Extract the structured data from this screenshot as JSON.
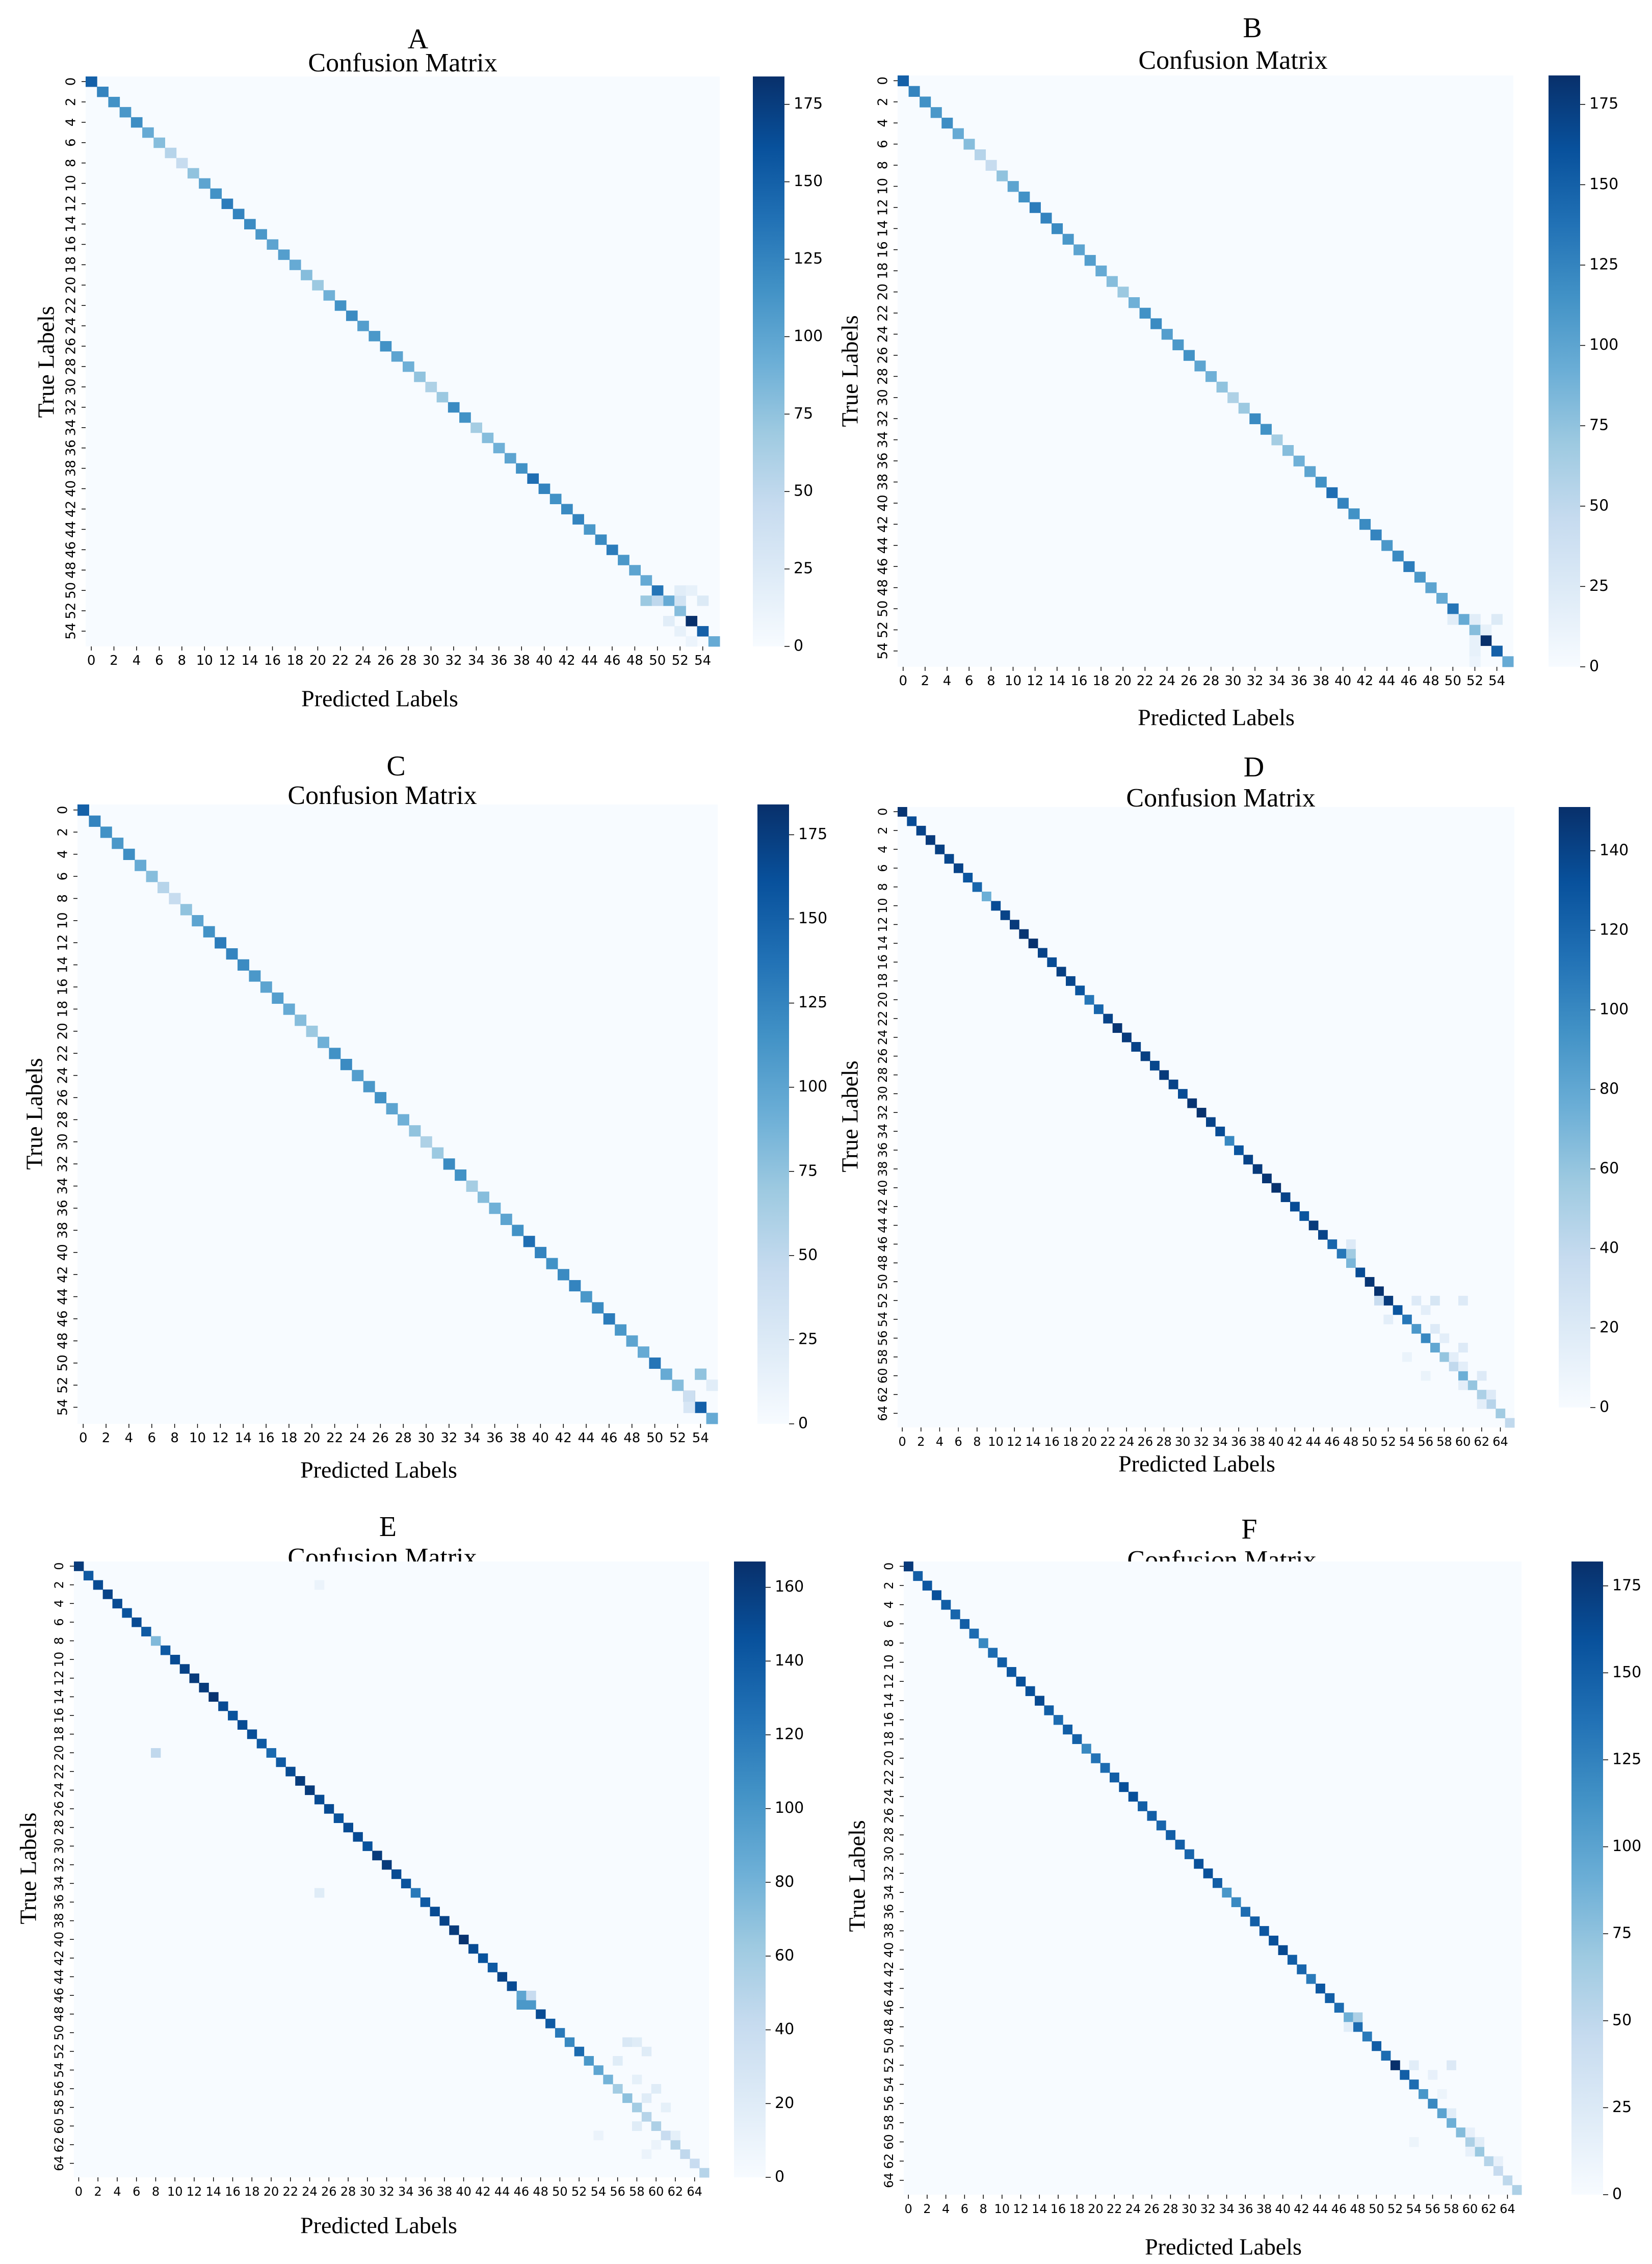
{
  "figure": {
    "colormap": [
      "#f7fbff",
      "#deebf7",
      "#c6dbef",
      "#9ecae1",
      "#6baed6",
      "#4292c6",
      "#2171b5",
      "#08519c",
      "#08306b"
    ]
  },
  "chart_data": [
    {
      "type": "heatmap",
      "panel_label": "A",
      "title": "Confusion Matrix",
      "xlabel": "Predicted Labels",
      "ylabel": "True Labels",
      "n_classes": 56,
      "tick_labels": [
        "0",
        "2",
        "4",
        "6",
        "8",
        "10",
        "12",
        "14",
        "16",
        "18",
        "20",
        "22",
        "24",
        "26",
        "28",
        "30",
        "32",
        "34",
        "36",
        "38",
        "40",
        "42",
        "44",
        "46",
        "48",
        "50",
        "52",
        "54"
      ],
      "colorbar": {
        "min": 0,
        "max": 184,
        "ticks": [
          0,
          25,
          50,
          75,
          100,
          125,
          150,
          175
        ]
      },
      "diagonal": [
        150,
        125,
        115,
        110,
        118,
        95,
        80,
        55,
        45,
        75,
        100,
        115,
        130,
        125,
        120,
        110,
        100,
        105,
        95,
        80,
        70,
        90,
        115,
        120,
        105,
        110,
        115,
        100,
        90,
        75,
        60,
        70,
        120,
        115,
        65,
        80,
        90,
        100,
        115,
        140,
        125,
        115,
        120,
        125,
        110,
        120,
        130,
        110,
        100,
        95,
        135,
        95,
        80,
        184,
        150,
        95
      ],
      "off_diagonal": [
        [
          51,
          49,
          70
        ],
        [
          51,
          50,
          50
        ],
        [
          51,
          52,
          35
        ],
        [
          50,
          52,
          20
        ],
        [
          51,
          54,
          25
        ],
        [
          53,
          51,
          20
        ],
        [
          54,
          52,
          15
        ],
        [
          50,
          53,
          15
        ],
        [
          55,
          53,
          10
        ]
      ]
    },
    {
      "type": "heatmap",
      "panel_label": "B",
      "title": "Confusion Matrix",
      "xlabel": "Predicted Labels",
      "ylabel": "True Labels",
      "n_classes": 56,
      "tick_labels": [
        "0",
        "2",
        "4",
        "6",
        "8",
        "10",
        "12",
        "14",
        "16",
        "18",
        "20",
        "22",
        "24",
        "26",
        "28",
        "30",
        "32",
        "34",
        "36",
        "38",
        "40",
        "42",
        "44",
        "46",
        "48",
        "50",
        "52",
        "54"
      ],
      "colorbar": {
        "min": 0,
        "max": 184,
        "ticks": [
          0,
          25,
          50,
          75,
          100,
          125,
          150,
          175
        ]
      },
      "diagonal": [
        150,
        125,
        115,
        110,
        118,
        95,
        80,
        55,
        45,
        75,
        100,
        115,
        130,
        125,
        120,
        110,
        100,
        105,
        95,
        80,
        70,
        90,
        115,
        120,
        105,
        110,
        115,
        100,
        90,
        75,
        60,
        70,
        120,
        115,
        65,
        80,
        90,
        100,
        115,
        140,
        125,
        115,
        120,
        125,
        110,
        120,
        130,
        110,
        100,
        95,
        135,
        95,
        80,
        184,
        150,
        95
      ],
      "off_diagonal": [
        [
          51,
          50,
          20
        ],
        [
          51,
          52,
          20
        ],
        [
          52,
          53,
          15
        ],
        [
          51,
          54,
          25
        ],
        [
          53,
          52,
          15
        ],
        [
          54,
          52,
          15
        ],
        [
          55,
          52,
          10
        ]
      ]
    },
    {
      "type": "heatmap",
      "panel_label": "C",
      "title": "Confusion Matrix",
      "xlabel": "Predicted Labels",
      "ylabel": "True Labels",
      "n_classes": 56,
      "tick_labels": [
        "0",
        "2",
        "4",
        "6",
        "8",
        "10",
        "12",
        "14",
        "16",
        "18",
        "20",
        "22",
        "24",
        "26",
        "28",
        "30",
        "32",
        "34",
        "36",
        "38",
        "40",
        "42",
        "44",
        "46",
        "48",
        "50",
        "52",
        "54"
      ],
      "colorbar": {
        "min": 0,
        "max": 184,
        "ticks": [
          0,
          25,
          50,
          75,
          100,
          125,
          150,
          175
        ],
        "tick_labels": [
          "0",
          "25",
          "50",
          "75",
          "100",
          "125",
          "150",
          "175"
        ]
      },
      "diagonal": [
        150,
        125,
        115,
        110,
        118,
        95,
        80,
        55,
        45,
        75,
        100,
        115,
        130,
        125,
        120,
        110,
        100,
        105,
        95,
        80,
        70,
        90,
        115,
        120,
        105,
        110,
        115,
        100,
        90,
        75,
        60,
        70,
        120,
        115,
        65,
        80,
        90,
        100,
        115,
        140,
        125,
        115,
        120,
        125,
        110,
        120,
        130,
        110,
        100,
        95,
        135,
        95,
        80,
        184,
        150,
        95
      ],
      "off_diagonal": [
        [
          51,
          54,
          75
        ],
        [
          52,
          55,
          20
        ],
        [
          53,
          53,
          40
        ],
        [
          54,
          53,
          30
        ]
      ]
    },
    {
      "type": "heatmap",
      "panel_label": "D",
      "title": "Confusion Matrix",
      "xlabel": "Predicted Labels",
      "ylabel": "True Labels",
      "n_classes": 66,
      "tick_labels": [
        "0",
        "2",
        "4",
        "6",
        "8",
        "10",
        "12",
        "14",
        "16",
        "18",
        "20",
        "22",
        "24",
        "26",
        "28",
        "30",
        "32",
        "34",
        "36",
        "38",
        "40",
        "42",
        "44",
        "46",
        "48",
        "50",
        "52",
        "54",
        "56",
        "58",
        "60",
        "62",
        "64"
      ],
      "colorbar": {
        "min": 0,
        "max": 151,
        "ticks": [
          0,
          20,
          40,
          60,
          80,
          100,
          120,
          140
        ]
      },
      "diagonal": [
        148,
        135,
        140,
        145,
        142,
        138,
        140,
        130,
        120,
        75,
        135,
        140,
        145,
        148,
        150,
        140,
        135,
        142,
        138,
        130,
        110,
        120,
        140,
        148,
        145,
        140,
        142,
        138,
        145,
        140,
        135,
        148,
        150,
        140,
        135,
        100,
        130,
        140,
        145,
        148,
        150,
        140,
        135,
        130,
        145,
        140,
        120,
        110,
        70,
        135,
        148,
        150,
        145,
        130,
        110,
        90,
        100,
        80,
        60,
        40,
        75,
        60,
        50,
        45,
        55,
        40
      ],
      "off_diagonal": [
        [
          47,
          48,
          55
        ],
        [
          46,
          48,
          20
        ],
        [
          52,
          51,
          35
        ],
        [
          52,
          55,
          20
        ],
        [
          52,
          57,
          25
        ],
        [
          52,
          60,
          20
        ],
        [
          53,
          56,
          15
        ],
        [
          54,
          52,
          15
        ],
        [
          55,
          57,
          20
        ],
        [
          56,
          58,
          15
        ],
        [
          57,
          60,
          20
        ],
        [
          58,
          59,
          15
        ],
        [
          59,
          60,
          15
        ],
        [
          60,
          62,
          20
        ],
        [
          61,
          60,
          15
        ],
        [
          62,
          63,
          20
        ],
        [
          63,
          62,
          15
        ],
        [
          60,
          56,
          10
        ],
        [
          58,
          54,
          10
        ]
      ]
    },
    {
      "type": "heatmap",
      "panel_label": "E",
      "title": "Confusion Matrix",
      "xlabel": "Predicted Labels",
      "ylabel": "True Labels",
      "n_classes": 66,
      "tick_labels": [
        "0",
        "2",
        "4",
        "6",
        "8",
        "10",
        "12",
        "14",
        "16",
        "18",
        "20",
        "22",
        "24",
        "26",
        "28",
        "30",
        "32",
        "34",
        "36",
        "38",
        "40",
        "42",
        "44",
        "46",
        "48",
        "50",
        "52",
        "54",
        "56",
        "58",
        "60",
        "62",
        "64"
      ],
      "colorbar": {
        "min": 0,
        "max": 167,
        "ticks": [
          0,
          20,
          40,
          60,
          80,
          100,
          120,
          140,
          160
        ]
      },
      "diagonal": [
        160,
        140,
        150,
        155,
        150,
        145,
        150,
        140,
        75,
        140,
        150,
        155,
        160,
        160,
        165,
        150,
        145,
        150,
        148,
        140,
        130,
        140,
        150,
        160,
        160,
        150,
        150,
        145,
        150,
        150,
        145,
        160,
        160,
        150,
        145,
        120,
        140,
        150,
        155,
        160,
        165,
        150,
        145,
        140,
        155,
        150,
        90,
        100,
        150,
        140,
        120,
        110,
        130,
        100,
        90,
        80,
        60,
        70,
        60,
        50,
        55,
        40,
        50,
        45,
        40,
        50
      ],
      "off_diagonal": [
        [
          20,
          8,
          45
        ],
        [
          47,
          46,
          100
        ],
        [
          46,
          47,
          40
        ],
        [
          35,
          25,
          20
        ],
        [
          2,
          25,
          10
        ],
        [
          51,
          57,
          25
        ],
        [
          51,
          58,
          20
        ],
        [
          52,
          59,
          20
        ],
        [
          53,
          56,
          20
        ],
        [
          55,
          58,
          15
        ],
        [
          56,
          60,
          20
        ],
        [
          57,
          59,
          20
        ],
        [
          58,
          61,
          15
        ],
        [
          60,
          58,
          20
        ],
        [
          61,
          62,
          15
        ],
        [
          62,
          60,
          10
        ],
        [
          63,
          59,
          10
        ],
        [
          61,
          54,
          10
        ]
      ]
    },
    {
      "type": "heatmap",
      "panel_label": "F",
      "title": "Confusion Matrix",
      "xlabel": "Predicted Labels",
      "ylabel": "True Labels",
      "n_classes": 66,
      "tick_labels": [
        "0",
        "2",
        "4",
        "6",
        "8",
        "10",
        "12",
        "14",
        "16",
        "18",
        "20",
        "22",
        "24",
        "26",
        "28",
        "30",
        "32",
        "34",
        "36",
        "38",
        "40",
        "42",
        "44",
        "46",
        "48",
        "50",
        "52",
        "54",
        "56",
        "58",
        "60",
        "62",
        "64"
      ],
      "colorbar": {
        "min": 0,
        "max": 182,
        "ticks": [
          0,
          25,
          50,
          75,
          100,
          125,
          150,
          175
        ]
      },
      "diagonal": [
        175,
        150,
        155,
        160,
        150,
        145,
        150,
        140,
        120,
        140,
        150,
        155,
        160,
        160,
        165,
        150,
        140,
        150,
        148,
        120,
        135,
        140,
        150,
        160,
        160,
        150,
        150,
        145,
        150,
        150,
        145,
        160,
        160,
        150,
        110,
        120,
        140,
        150,
        155,
        160,
        165,
        150,
        145,
        130,
        155,
        150,
        140,
        90,
        140,
        130,
        150,
        140,
        182,
        150,
        140,
        110,
        120,
        100,
        90,
        80,
        60,
        70,
        55,
        45,
        50,
        60
      ],
      "off_diagonal": [
        [
          47,
          48,
          60
        ],
        [
          48,
          47,
          20
        ],
        [
          52,
          54,
          20
        ],
        [
          52,
          58,
          25
        ],
        [
          53,
          56,
          15
        ],
        [
          57,
          58,
          20
        ],
        [
          59,
          60,
          15
        ],
        [
          60,
          61,
          20
        ],
        [
          61,
          60,
          15
        ],
        [
          62,
          63,
          15
        ],
        [
          55,
          57,
          10
        ],
        [
          60,
          54,
          10
        ]
      ]
    }
  ]
}
